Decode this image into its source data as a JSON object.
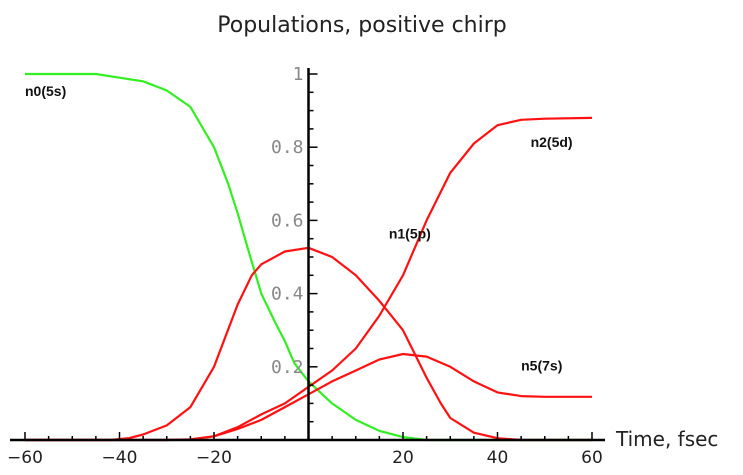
{
  "chart_data": {
    "type": "line",
    "title": "Populations, positive chirp",
    "xlabel": "Time, fsec",
    "ylabel": "",
    "xlim": [
      -60,
      60
    ],
    "ylim": [
      0,
      1
    ],
    "x_ticks": [
      -60,
      -40,
      -20,
      20,
      40,
      60
    ],
    "x_tick_labels": [
      "−60",
      "−40",
      "−20",
      "20",
      "40",
      "60"
    ],
    "y_ticks": [
      0.2,
      0.4,
      0.6,
      0.8,
      1
    ],
    "y_tick_labels": [
      "0.2",
      "0.4",
      "0.6",
      "0.8",
      "1"
    ],
    "grid": false,
    "series": [
      {
        "name": "n0(5s)",
        "color": "#33ee22",
        "label_at": [
          -60,
          0.94
        ],
        "points": [
          [
            -60,
            1
          ],
          [
            -45,
            1
          ],
          [
            -40,
            0.99
          ],
          [
            -35,
            0.98
          ],
          [
            -30,
            0.955
          ],
          [
            -25,
            0.91
          ],
          [
            -20,
            0.8
          ],
          [
            -17,
            0.7
          ],
          [
            -15,
            0.62
          ],
          [
            -13,
            0.53
          ],
          [
            -10,
            0.4
          ],
          [
            -7,
            0.32
          ],
          [
            -5,
            0.27
          ],
          [
            -3,
            0.21
          ],
          [
            0,
            0.16
          ],
          [
            5,
            0.1
          ],
          [
            10,
            0.055
          ],
          [
            15,
            0.025
          ],
          [
            20,
            0.008
          ],
          [
            25,
            0
          ],
          [
            40,
            0
          ],
          [
            60,
            0
          ]
        ]
      },
      {
        "name": "n1(5p)",
        "color": "#ff1111",
        "label_at": [
          17,
          0.55
        ],
        "points": [
          [
            -60,
            0
          ],
          [
            -42,
            0
          ],
          [
            -38,
            0.005
          ],
          [
            -35,
            0.015
          ],
          [
            -30,
            0.04
          ],
          [
            -25,
            0.09
          ],
          [
            -20,
            0.2
          ],
          [
            -15,
            0.37
          ],
          [
            -12,
            0.45
          ],
          [
            -10,
            0.48
          ],
          [
            -5,
            0.515
          ],
          [
            0,
            0.525
          ],
          [
            5,
            0.5
          ],
          [
            10,
            0.45
          ],
          [
            15,
            0.38
          ],
          [
            20,
            0.3
          ],
          [
            25,
            0.17
          ],
          [
            28,
            0.1
          ],
          [
            30,
            0.06
          ],
          [
            35,
            0.02
          ],
          [
            40,
            0.005
          ],
          [
            45,
            0
          ],
          [
            60,
            0
          ]
        ]
      },
      {
        "name": "n2(5d)",
        "color": "#ff1111",
        "label_at": [
          47,
          0.8
        ],
        "points": [
          [
            -60,
            0
          ],
          [
            -30,
            0
          ],
          [
            -25,
            0.001
          ],
          [
            -20,
            0.01
          ],
          [
            -15,
            0.035
          ],
          [
            -10,
            0.07
          ],
          [
            -5,
            0.1
          ],
          [
            0,
            0.145
          ],
          [
            5,
            0.19
          ],
          [
            10,
            0.25
          ],
          [
            15,
            0.34
          ],
          [
            20,
            0.45
          ],
          [
            25,
            0.6
          ],
          [
            30,
            0.73
          ],
          [
            35,
            0.81
          ],
          [
            40,
            0.86
          ],
          [
            45,
            0.875
          ],
          [
            50,
            0.878
          ],
          [
            60,
            0.88
          ]
        ]
      },
      {
        "name": "n5(7s)",
        "color": "#ff1111",
        "label_at": [
          45,
          0.19
        ],
        "points": [
          [
            -60,
            0
          ],
          [
            -30,
            0
          ],
          [
            -25,
            0.002
          ],
          [
            -20,
            0.01
          ],
          [
            -15,
            0.03
          ],
          [
            -10,
            0.055
          ],
          [
            -5,
            0.09
          ],
          [
            0,
            0.125
          ],
          [
            5,
            0.16
          ],
          [
            10,
            0.19
          ],
          [
            15,
            0.22
          ],
          [
            20,
            0.235
          ],
          [
            25,
            0.228
          ],
          [
            30,
            0.2
          ],
          [
            35,
            0.16
          ],
          [
            40,
            0.13
          ],
          [
            45,
            0.12
          ],
          [
            50,
            0.118
          ],
          [
            60,
            0.118
          ]
        ]
      }
    ]
  }
}
